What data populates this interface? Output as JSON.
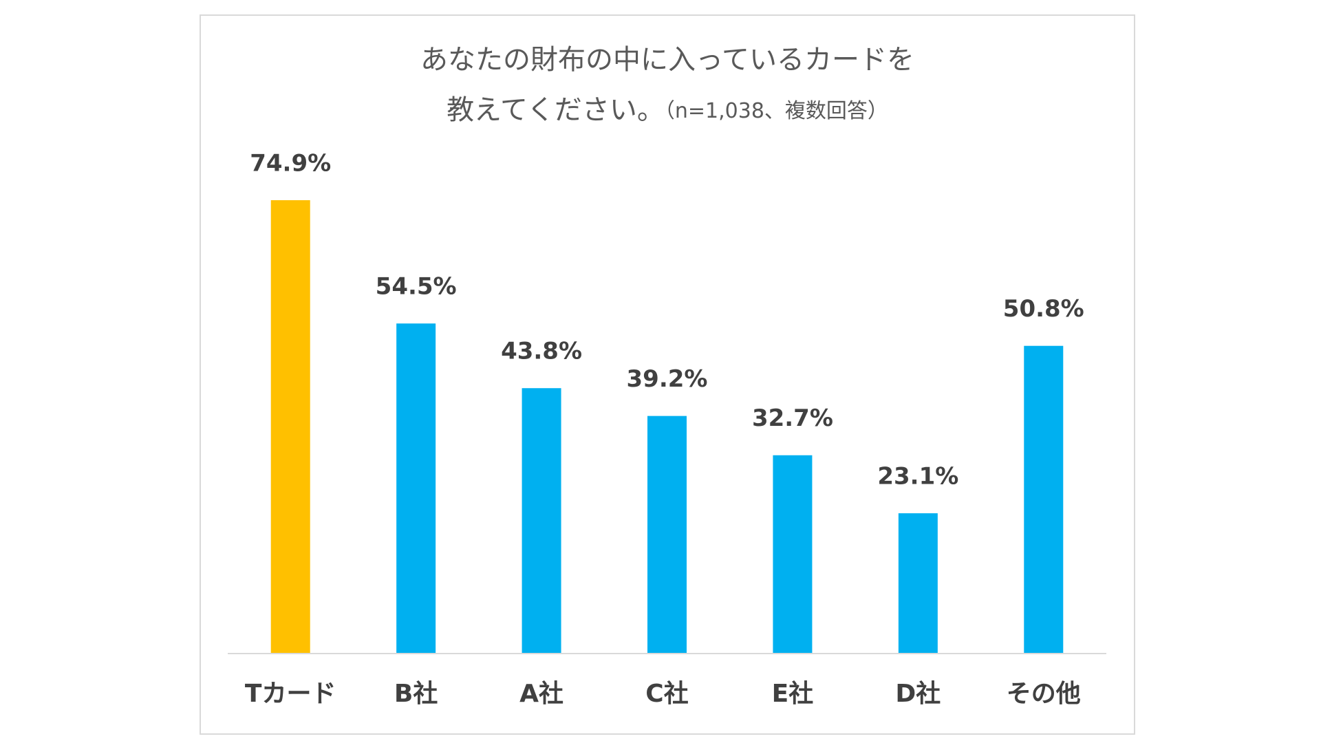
{
  "chart_data": {
    "type": "bar",
    "title": [
      "あなたの財布の中に入っているカードを",
      "教えてください。"
    ],
    "subtitle": "（n=1,038、複数回答）",
    "categories": [
      "Tカード",
      "B社",
      "A社",
      "C社",
      "E社",
      "D社",
      "その他"
    ],
    "values": [
      74.9,
      54.5,
      43.8,
      39.2,
      32.7,
      23.1,
      50.8
    ],
    "value_labels": [
      "74.9%",
      "54.5%",
      "43.8%",
      "39.2%",
      "32.7%",
      "23.1%",
      "50.8%"
    ],
    "colors": [
      "#FFC000",
      "#00B0F0",
      "#00B0F0",
      "#00B0F0",
      "#00B0F0",
      "#00B0F0",
      "#00B0F0"
    ]
  }
}
